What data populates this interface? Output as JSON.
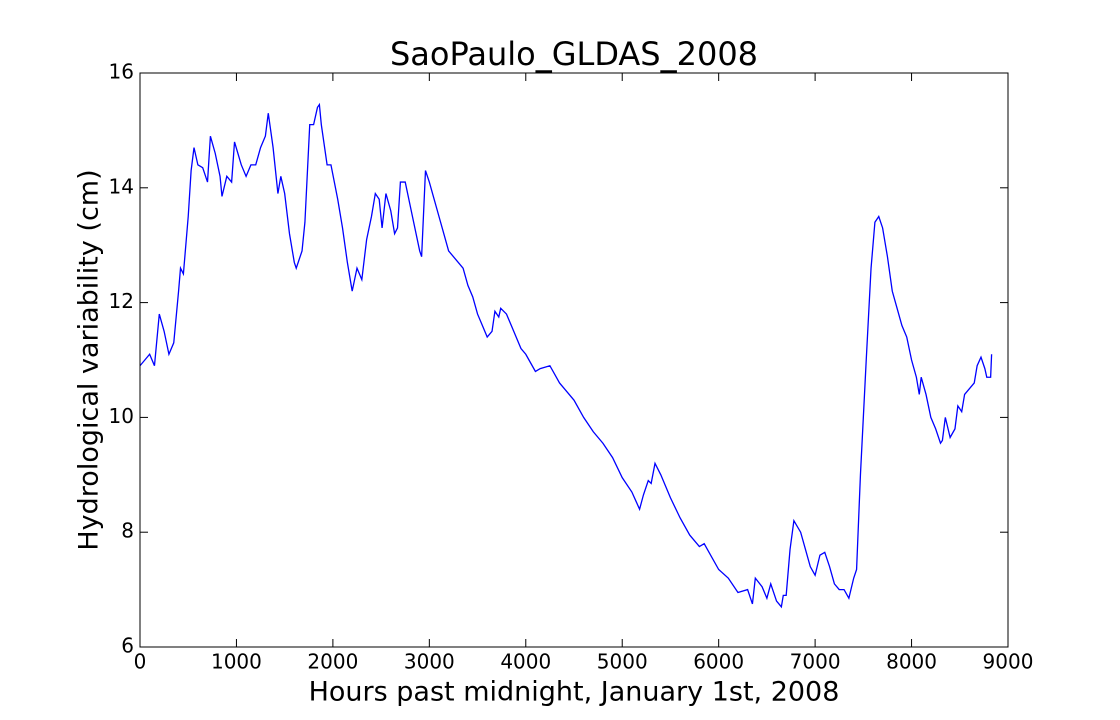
{
  "chart_data": {
    "type": "line",
    "title": "SaoPaulo_GLDAS_2008",
    "x_label": "Hours past midnight, January 1st, 2008",
    "y_label": "Hydrological variability (cm)",
    "xlim": [
      0,
      9000
    ],
    "xticks": [
      0,
      1000,
      2000,
      3000,
      4000,
      5000,
      6000,
      7000,
      8000,
      9000
    ],
    "ylim": [
      6,
      16
    ],
    "yticks": [
      6,
      8,
      10,
      12,
      14,
      16
    ],
    "grid": false,
    "series": [
      {
        "color": "#0000ff",
        "x": [
          0,
          50,
          100,
          150,
          200,
          250,
          300,
          350,
          400,
          420,
          450,
          500,
          530,
          560,
          600,
          650,
          700,
          730,
          780,
          830,
          850,
          900,
          950,
          980,
          1050,
          1100,
          1150,
          1200,
          1250,
          1300,
          1330,
          1380,
          1430,
          1460,
          1500,
          1550,
          1600,
          1620,
          1680,
          1710,
          1760,
          1800,
          1840,
          1860,
          1880,
          1940,
          1980,
          2050,
          2100,
          2150,
          2200,
          2250,
          2300,
          2350,
          2400,
          2440,
          2480,
          2510,
          2550,
          2600,
          2640,
          2670,
          2700,
          2750,
          2800,
          2850,
          2900,
          2920,
          2960,
          3000,
          3050,
          3100,
          3150,
          3200,
          3300,
          3350,
          3400,
          3450,
          3500,
          3550,
          3600,
          3650,
          3680,
          3720,
          3740,
          3800,
          3850,
          3900,
          3950,
          4000,
          4050,
          4100,
          4150,
          4250,
          4300,
          4350,
          4400,
          4500,
          4600,
          4700,
          4800,
          4900,
          5000,
          5100,
          5180,
          5220,
          5270,
          5300,
          5340,
          5400,
          5500,
          5600,
          5700,
          5800,
          5850,
          5900,
          6000,
          6100,
          6200,
          6300,
          6350,
          6380,
          6450,
          6500,
          6540,
          6600,
          6650,
          6670,
          6700,
          6740,
          6780,
          6850,
          6900,
          6950,
          7000,
          7050,
          7100,
          7150,
          7200,
          7250,
          7300,
          7350,
          7400,
          7430,
          7470,
          7530,
          7580,
          7620,
          7660,
          7700,
          7750,
          7800,
          7850,
          7900,
          7950,
          8000,
          8050,
          8080,
          8100,
          8150,
          8200,
          8250,
          8300,
          8320,
          8350,
          8400,
          8450,
          8480,
          8520,
          8550,
          8600,
          8650,
          8680,
          8720,
          8760,
          8780,
          8820,
          8830
        ],
        "values": [
          10.9,
          11.0,
          11.1,
          10.9,
          11.8,
          11.5,
          11.1,
          11.3,
          12.2,
          12.6,
          12.5,
          13.5,
          14.3,
          14.7,
          14.4,
          14.35,
          14.1,
          14.9,
          14.6,
          14.2,
          13.85,
          14.2,
          14.1,
          14.8,
          14.4,
          14.2,
          14.4,
          14.4,
          14.7,
          14.9,
          15.3,
          14.7,
          13.9,
          14.2,
          13.9,
          13.2,
          12.7,
          12.6,
          12.9,
          13.4,
          15.1,
          15.1,
          15.4,
          15.45,
          15.1,
          14.4,
          14.4,
          13.8,
          13.3,
          12.7,
          12.2,
          12.6,
          12.4,
          13.1,
          13.5,
          13.9,
          13.8,
          13.3,
          13.9,
          13.6,
          13.2,
          13.3,
          14.1,
          14.1,
          13.7,
          13.3,
          12.9,
          12.8,
          14.3,
          14.1,
          13.8,
          13.5,
          13.2,
          12.9,
          12.7,
          12.6,
          12.3,
          12.1,
          11.8,
          11.6,
          11.4,
          11.5,
          11.85,
          11.75,
          11.9,
          11.8,
          11.6,
          11.4,
          11.2,
          11.1,
          10.95,
          10.8,
          10.85,
          10.9,
          10.75,
          10.6,
          10.5,
          10.3,
          10.0,
          9.75,
          9.55,
          9.3,
          8.95,
          8.7,
          8.4,
          8.65,
          8.9,
          8.85,
          9.2,
          9.0,
          8.6,
          8.25,
          7.95,
          7.75,
          7.8,
          7.65,
          7.35,
          7.2,
          6.95,
          7.0,
          6.75,
          7.2,
          7.05,
          6.85,
          7.1,
          6.8,
          6.7,
          6.9,
          6.9,
          7.7,
          8.2,
          8.0,
          7.7,
          7.4,
          7.25,
          7.6,
          7.65,
          7.4,
          7.1,
          7.0,
          7.0,
          6.85,
          7.2,
          7.35,
          9.0,
          11.0,
          12.6,
          13.4,
          13.5,
          13.3,
          12.8,
          12.2,
          11.9,
          11.6,
          11.4,
          11.0,
          10.7,
          10.4,
          10.7,
          10.4,
          10.0,
          9.8,
          9.55,
          9.6,
          10.0,
          9.65,
          9.8,
          10.2,
          10.1,
          10.4,
          10.5,
          10.6,
          10.9,
          11.05,
          10.85,
          10.7,
          10.7,
          11.1
        ]
      }
    ]
  }
}
